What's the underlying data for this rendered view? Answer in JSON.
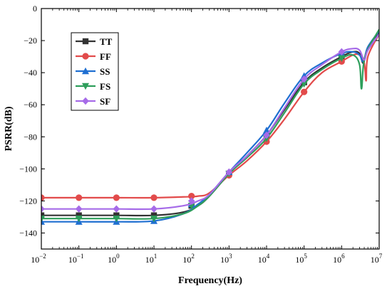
{
  "chart_data": {
    "type": "line",
    "title": "",
    "xlabel": "Frequency(Hz)",
    "ylabel": "PSRR(dB)",
    "x_scale": "log",
    "xlim": [
      0.01,
      10000000
    ],
    "ylim": [
      -150,
      0
    ],
    "x_ticks": [
      0.01,
      0.1,
      1,
      10,
      100,
      1000,
      10000,
      100000,
      1000000,
      10000000
    ],
    "x_tick_labels": [
      {
        "base": "10",
        "exp": "−2"
      },
      {
        "base": "10",
        "exp": "−1"
      },
      {
        "base": "10",
        "exp": "0"
      },
      {
        "base": "10",
        "exp": "1"
      },
      {
        "base": "10",
        "exp": "2"
      },
      {
        "base": "10",
        "exp": "3"
      },
      {
        "base": "10",
        "exp": "4"
      },
      {
        "base": "10",
        "exp": "5"
      },
      {
        "base": "10",
        "exp": "6"
      },
      {
        "base": "10",
        "exp": "7"
      }
    ],
    "y_ticks": [
      0,
      -20,
      -40,
      -60,
      -80,
      -100,
      -120,
      -140
    ],
    "y_tick_labels": [
      "0",
      "−20",
      "−40",
      "−60",
      "−80",
      "−100",
      "−120",
      "−140"
    ],
    "grid": false,
    "legend_position": "top-left",
    "series": [
      {
        "name": "TT",
        "color": "#333333",
        "marker": "square",
        "x": [
          0.01,
          0.1,
          1,
          10,
          60,
          150,
          300,
          1000,
          3000,
          10000,
          30000,
          100000,
          300000,
          1000000,
          2000000,
          3000000,
          3800000,
          5000000,
          10000000
        ],
        "y": [
          -129,
          -129,
          -129,
          -129,
          -127,
          -123,
          -117,
          -103,
          -92,
          -79,
          -63,
          -46,
          -37,
          -30,
          -27,
          -28,
          -34,
          -24,
          -15
        ],
        "marker_x": [
          0.01,
          0.1,
          1,
          10,
          100,
          1000,
          10000,
          100000,
          1000000
        ],
        "marker_y": [
          -129,
          -129,
          -129,
          -129,
          -123,
          -103,
          -79,
          -46,
          -30
        ]
      },
      {
        "name": "FF",
        "color": "#e24b4b",
        "marker": "circle",
        "x": [
          0.01,
          0.1,
          1,
          10,
          60,
          150,
          300,
          1000,
          3000,
          10000,
          30000,
          100000,
          300000,
          1000000,
          2000000,
          3000000,
          4000000,
          4500000,
          5000000,
          10000000
        ],
        "y": [
          -118,
          -118,
          -118,
          -118,
          -117.5,
          -117,
          -115,
          -104,
          -95,
          -83,
          -69,
          -52,
          -40,
          -33,
          -29,
          -29,
          -34,
          -45,
          -30,
          -16
        ],
        "marker_x": [
          0.01,
          0.1,
          1,
          10,
          100,
          1000,
          10000,
          100000,
          1000000
        ],
        "marker_y": [
          -118,
          -118,
          -118,
          -118,
          -117,
          -104,
          -83,
          -52,
          -33
        ]
      },
      {
        "name": "SS",
        "color": "#1f6fd1",
        "marker": "triangle-up",
        "x": [
          0.01,
          0.1,
          1,
          10,
          60,
          150,
          300,
          1000,
          3000,
          10000,
          30000,
          100000,
          300000,
          1000000,
          2000000,
          3000000,
          3800000,
          5000000,
          10000000
        ],
        "y": [
          -133,
          -133,
          -133,
          -132.5,
          -128,
          -122,
          -116,
          -102,
          -90,
          -76,
          -59,
          -42,
          -34,
          -28,
          -27,
          -29,
          -33,
          -24,
          -14
        ],
        "marker_x": [
          0.01,
          0.1,
          1,
          10,
          100,
          1000,
          10000,
          100000,
          1000000
        ],
        "marker_y": [
          -133,
          -133,
          -133,
          -132.5,
          -122,
          -102,
          -76,
          -42,
          -28
        ]
      },
      {
        "name": "FS",
        "color": "#2e9e5b",
        "marker": "triangle-down",
        "x": [
          0.01,
          0.1,
          1,
          10,
          60,
          150,
          300,
          1000,
          3000,
          10000,
          30000,
          100000,
          300000,
          1000000,
          2000000,
          3000000,
          3400000,
          4200000,
          10000000
        ],
        "y": [
          -131,
          -131,
          -131,
          -131,
          -128,
          -123,
          -117,
          -103,
          -93,
          -81,
          -65,
          -47,
          -38,
          -31,
          -29,
          -35,
          -50,
          -30,
          -13
        ],
        "marker_x": [
          0.01,
          0.1,
          1,
          10,
          100,
          1000,
          10000,
          100000,
          1000000
        ],
        "marker_y": [
          -131,
          -131,
          -131,
          -131,
          -123,
          -103,
          -81,
          -47,
          -31
        ]
      },
      {
        "name": "SF",
        "color": "#a66be8",
        "marker": "diamond",
        "x": [
          0.01,
          0.1,
          1,
          10,
          60,
          150,
          300,
          1000,
          3000,
          10000,
          30000,
          100000,
          300000,
          1000000,
          2000000,
          3000000,
          4000000,
          5000000,
          10000000
        ],
        "y": [
          -125,
          -125,
          -125,
          -125,
          -123,
          -120,
          -116,
          -102,
          -92,
          -79,
          -62,
          -44,
          -35,
          -27,
          -25,
          -26,
          -32,
          -26,
          -16
        ],
        "marker_x": [
          0.01,
          0.1,
          1,
          10,
          100,
          1000,
          10000,
          100000,
          1000000
        ],
        "marker_y": [
          -125,
          -125,
          -125,
          -125,
          -120,
          -102,
          -79,
          -44,
          -27
        ]
      }
    ]
  }
}
